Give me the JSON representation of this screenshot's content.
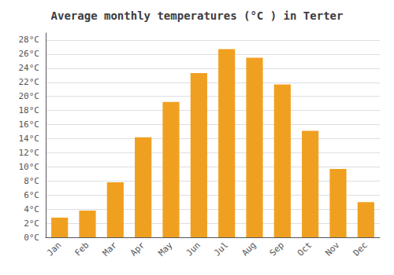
{
  "chart_data": {
    "type": "bar",
    "title": "Average monthly temperatures (°C ) in Terter",
    "categories": [
      "Jan",
      "Feb",
      "Mar",
      "Apr",
      "May",
      "Jun",
      "Jul",
      "Aug",
      "Sep",
      "Oct",
      "Nov",
      "Dec"
    ],
    "values": [
      2.8,
      3.8,
      7.8,
      14.2,
      19.2,
      23.3,
      26.7,
      25.5,
      21.7,
      15.1,
      9.7,
      5.0
    ],
    "color": "#F0A020",
    "ylim": [
      0,
      29
    ],
    "yticks": [
      {
        "value": 0,
        "label": "0°C"
      },
      {
        "value": 2,
        "label": "2°C"
      },
      {
        "value": 4,
        "label": "4°C"
      },
      {
        "value": 6,
        "label": "6°C"
      },
      {
        "value": 8,
        "label": "8°C"
      },
      {
        "value": 10,
        "label": "10°C"
      },
      {
        "value": 12,
        "label": "12°C"
      },
      {
        "value": 14,
        "label": "14°C"
      },
      {
        "value": 16,
        "label": "16°C"
      },
      {
        "value": 18,
        "label": "18°C"
      },
      {
        "value": 20,
        "label": "20°C"
      },
      {
        "value": 22,
        "label": "22°C"
      },
      {
        "value": 24,
        "label": "24°C"
      },
      {
        "value": 26,
        "label": "26°C"
      },
      {
        "value": 28,
        "label": "28°C"
      }
    ],
    "grid": true
  }
}
